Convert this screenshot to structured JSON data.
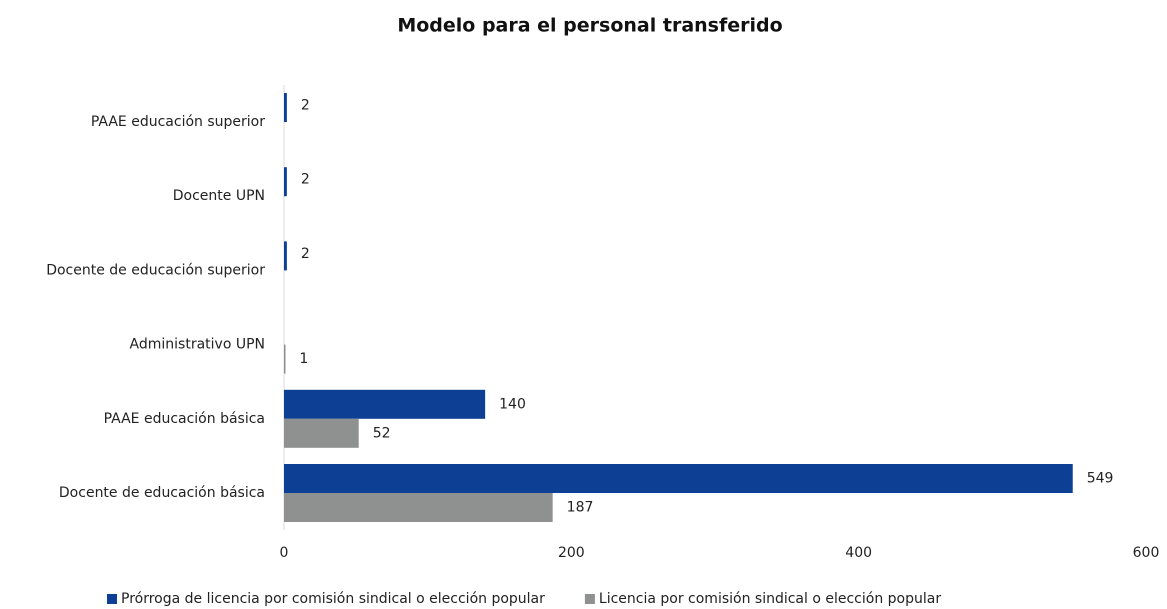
{
  "chart_data": {
    "type": "barh",
    "title": "Modelo para el personal transferido",
    "categories": [
      "PAAE educación superior",
      "Docente UPN",
      "Docente de educación superior",
      "Administrativo UPN",
      "PAAE educación básica",
      "Docente de educación básica"
    ],
    "series": [
      {
        "name": "Prórroga de licencia por comisión sindical o elección popular",
        "color": "#0d3f94",
        "values": [
          2,
          2,
          2,
          null,
          140,
          549
        ]
      },
      {
        "name": "Licencia por comisión sindical o elección popular",
        "color": "#8e918f",
        "values": [
          null,
          null,
          null,
          1,
          52,
          187
        ]
      }
    ],
    "xlim": [
      0,
      600
    ],
    "xticks": [
      0,
      200,
      400,
      600
    ],
    "legend": "bottom"
  }
}
